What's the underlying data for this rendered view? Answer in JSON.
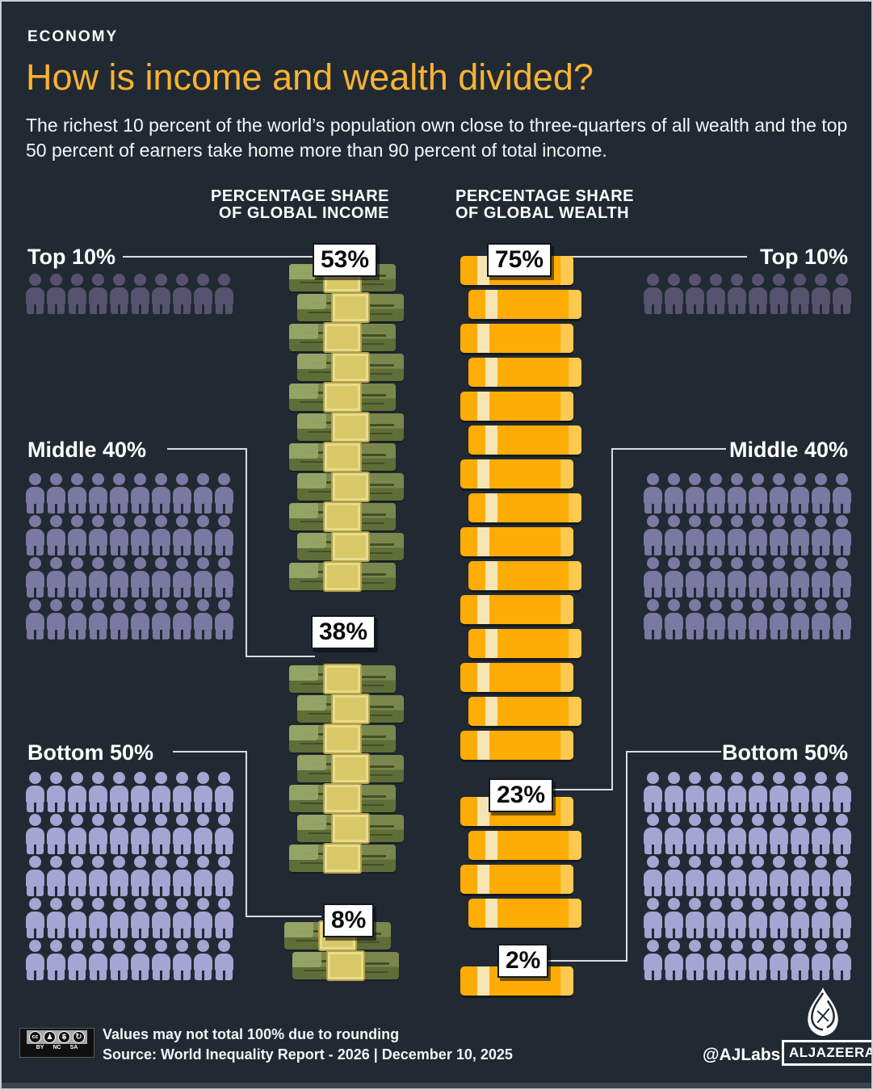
{
  "meta": {
    "category": "ECONOMY",
    "title": "How is income and wealth divided?",
    "subtitle": "The richest 10 percent of the world’s population own close to three-quarters of all wealth and the top 50 percent of earners take home more than 90 percent of total income."
  },
  "columns": {
    "income": [
      "PERCENTAGE SHARE",
      "OF GLOBAL INCOME"
    ],
    "wealth": [
      "PERCENTAGE SHARE",
      "OF GLOBAL WEALTH"
    ]
  },
  "groups": {
    "top10": {
      "label": "Top 10%",
      "income": "53%",
      "wealth": "75%",
      "people": 10
    },
    "middle40": {
      "label": "Middle 40%",
      "income": "38%",
      "wealth": "23%",
      "people": 40
    },
    "bottom50": {
      "label": "Bottom 50%",
      "income": "8%",
      "wealth": "2%",
      "people": 50
    }
  },
  "stacks": {
    "income": {
      "top10": 11,
      "middle40": 7,
      "bottom50": 2
    },
    "wealth": {
      "top10": 15,
      "middle40": 4,
      "bottom50": 1
    }
  },
  "chart_data": {
    "type": "bar",
    "style": "pictograph-stacks",
    "categories": [
      "Top 10%",
      "Middle 40%",
      "Bottom 50%"
    ],
    "series": [
      {
        "name": "Percentage share of global income",
        "values": [
          53,
          38,
          8
        ]
      },
      {
        "name": "Percentage share of global wealth",
        "values": [
          75,
          23,
          2
        ]
      }
    ],
    "unit": "%",
    "title": "How is income and wealth divided?",
    "population_icon_counts": [
      10,
      40,
      50
    ],
    "income_stack_units": [
      11,
      7,
      2
    ],
    "wealth_stack_units": [
      15,
      4,
      1
    ],
    "legend_position": "inline-labels",
    "grid": false
  },
  "colors": {
    "background": "#212A33",
    "accent_title": "#F9B232",
    "person_top10": "#57536F",
    "person_middle40": "#7B78A1",
    "person_bottom50": "#A6A4D3",
    "money_green": "#6F7D45",
    "money_band": "#D9C868",
    "gold_bar": "#FFAD05",
    "callout_bg": "#FFFFFF",
    "callout_text": "#0B0B0B"
  },
  "footer": {
    "note": "Values may not total 100% due to rounding",
    "source": "Source: World Inequality Report - 2026   |   December 10, 2025",
    "credit": "@AJLabs",
    "brand": "ALJAZEERA",
    "license_cc": "cc",
    "license_labels": [
      "BY",
      "NC",
      "SA"
    ]
  }
}
